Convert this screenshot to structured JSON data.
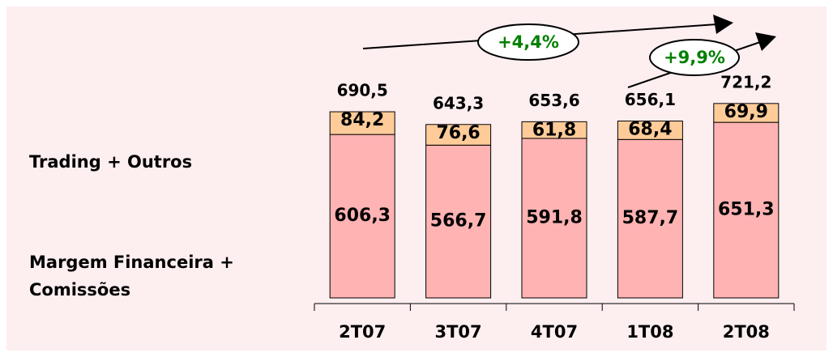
{
  "chart_data": {
    "type": "stacked-bar",
    "categories": [
      "2T07",
      "3T07",
      "4T07",
      "1T08",
      "2T08"
    ],
    "series": [
      {
        "name": "Margem Financeira + Comissões",
        "color": "#ffb3b3",
        "values": [
          606.3,
          566.7,
          591.8,
          587.7,
          651.3
        ],
        "value_labels": [
          "606,3",
          "566,7",
          "591,8",
          "587,7",
          "651,3"
        ]
      },
      {
        "name": "Trading + Outros",
        "color": "#ffcc99",
        "values": [
          84.2,
          76.6,
          61.8,
          68.4,
          69.9
        ],
        "value_labels": [
          "84,2",
          "76,6",
          "61,8",
          "68,4",
          "69,9"
        ]
      }
    ],
    "totals": {
      "values": [
        690.5,
        643.3,
        653.6,
        656.1,
        721.2
      ],
      "value_labels": [
        "690,5",
        "643,3",
        "653,6",
        "656,1",
        "721,2"
      ]
    },
    "annotations": [
      {
        "text": "+4,4%",
        "color": "#008000"
      },
      {
        "text": "+9,9%",
        "color": "#008000"
      }
    ]
  }
}
